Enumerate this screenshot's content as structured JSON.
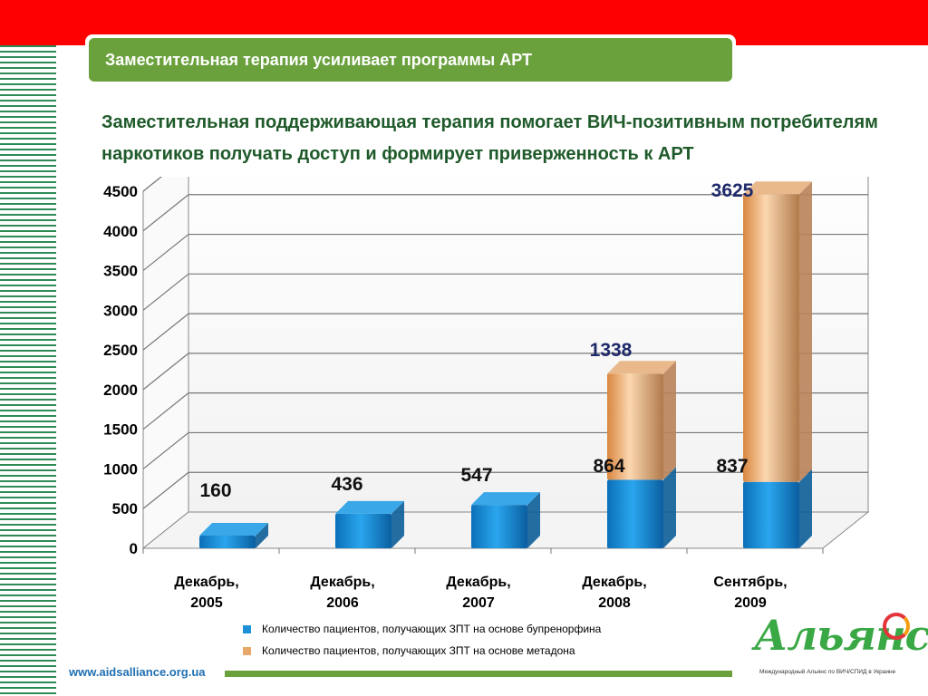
{
  "header": {
    "title": "Заместительная терапия усиливает программы АРТ"
  },
  "subtitle": "Заместительная поддерживающая терапия помогает ВИЧ-позитивным потребителям наркотиков получать доступ и формирует приверженность к АРТ",
  "chart_data": {
    "type": "bar",
    "stacked": true,
    "style": "3d",
    "categories": [
      "Декабрь, 2005",
      "Декабрь, 2006",
      "Декабрь, 2007",
      "Декабрь, 2008",
      "Сентябрь, 2009"
    ],
    "series": [
      {
        "name": "Количество пациентов, получающих ЗПТ на основе бупренорфина",
        "color": "#1e90d8",
        "values": [
          160,
          436,
          547,
          864,
          837
        ]
      },
      {
        "name": "Количество пациентов, получающих ЗПТ на основе метадона",
        "color": "#f0b27a",
        "values": [
          0,
          0,
          0,
          1338,
          3625
        ]
      }
    ],
    "data_labels": {
      "bottom": [
        "160",
        "436",
        "547",
        "864",
        "837"
      ],
      "top": [
        "",
        "",
        "",
        "1338",
        "3625"
      ]
    },
    "ylim": [
      0,
      4500
    ],
    "yticks": [
      0,
      500,
      1000,
      1500,
      2000,
      2500,
      3000,
      3500,
      4000,
      4500
    ],
    "grid": true,
    "legend_position": "bottom"
  },
  "footer": {
    "url": "www.aidsalliance.org.ua",
    "logo_text": "Альянс",
    "logo_sub": "Международный Альянс по ВИЧ/СПИД в Украине"
  }
}
